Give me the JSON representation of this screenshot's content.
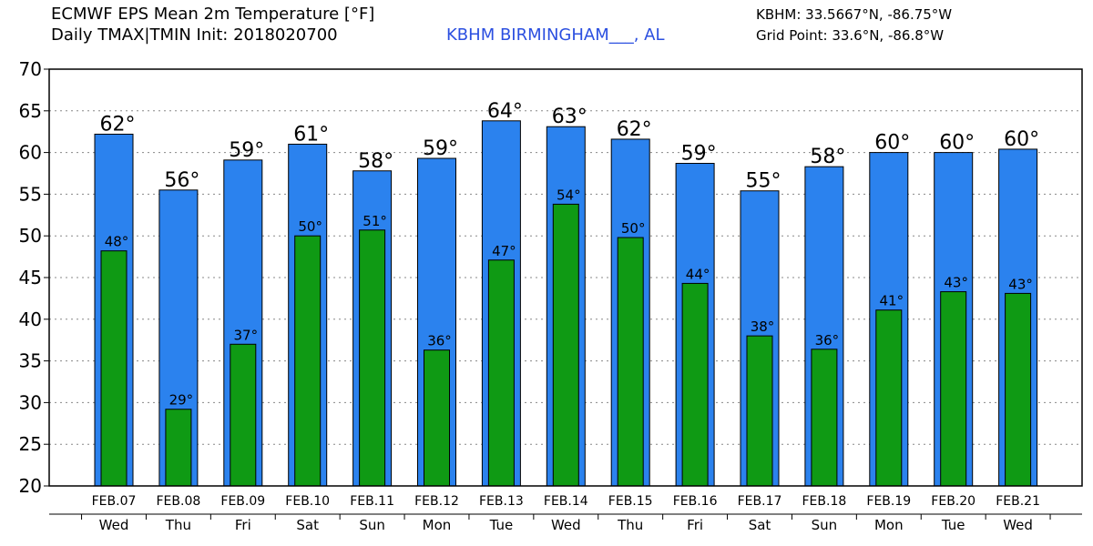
{
  "header": {
    "title_line1": "ECMWF EPS Mean 2m Temperature [°F]",
    "title_line2": "Daily TMAX|TMIN Init: 2018020700",
    "station": "KBHM BIRMINGHAM___, AL",
    "coord_line1": "KBHM: 33.5667°N, -86.75°W",
    "coord_line2": "Grid Point: 33.6°N, -86.8°W"
  },
  "colors": {
    "tmax_bar": "#2b82ee",
    "tmin_bar": "#0f9a14",
    "station_text": "#2b4fe0"
  },
  "chart_data": {
    "type": "bar",
    "ylim": [
      20,
      70
    ],
    "yticks": [
      20,
      25,
      30,
      35,
      40,
      45,
      50,
      55,
      60,
      65,
      70
    ],
    "grid": true,
    "categories": [
      "FEB.07",
      "FEB.08",
      "FEB.09",
      "FEB.10",
      "FEB.11",
      "FEB.12",
      "FEB.13",
      "FEB.14",
      "FEB.15",
      "FEB.16",
      "FEB.17",
      "FEB.18",
      "FEB.19",
      "FEB.20",
      "FEB.21"
    ],
    "days_of_week": [
      "Wed",
      "Thu",
      "Fri",
      "Sat",
      "Sun",
      "Mon",
      "Tue",
      "Wed",
      "Thu",
      "Fri",
      "Sat",
      "Sun",
      "Mon",
      "Tue",
      "Wed"
    ],
    "series": [
      {
        "name": "TMAX",
        "values": [
          62.2,
          55.5,
          59.1,
          61.0,
          57.8,
          59.3,
          63.8,
          63.1,
          61.6,
          58.7,
          55.4,
          58.3,
          60.0,
          60.0,
          60.4
        ],
        "labels": [
          "62°",
          "56°",
          "59°",
          "61°",
          "58°",
          "59°",
          "64°",
          "63°",
          "62°",
          "59°",
          "55°",
          "58°",
          "60°",
          "60°",
          "60°"
        ]
      },
      {
        "name": "TMIN",
        "values": [
          48.2,
          29.2,
          37.0,
          50.0,
          50.7,
          36.3,
          47.1,
          53.8,
          49.8,
          44.3,
          38.0,
          36.4,
          41.1,
          43.3,
          43.1
        ],
        "labels": [
          "48°",
          "29°",
          "37°",
          "50°",
          "51°",
          "36°",
          "47°",
          "54°",
          "50°",
          "44°",
          "38°",
          "36°",
          "41°",
          "43°",
          "43°"
        ]
      }
    ]
  }
}
